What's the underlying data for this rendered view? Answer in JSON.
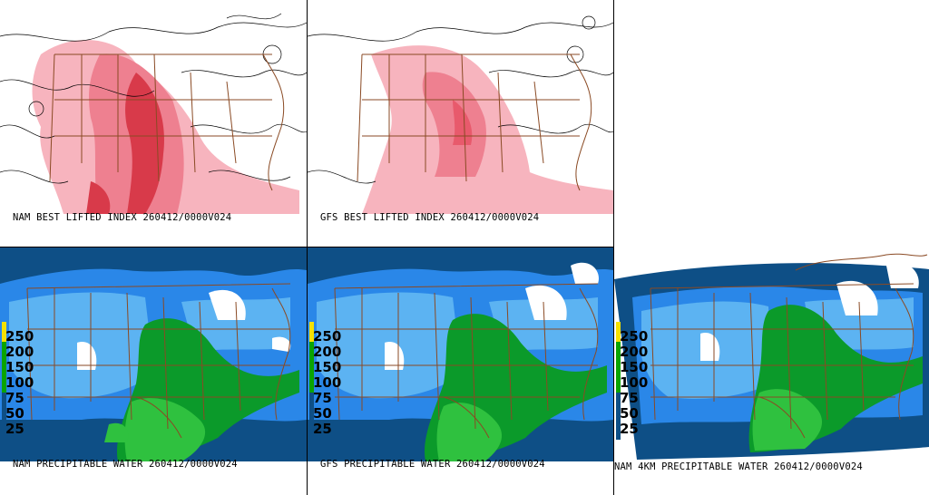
{
  "panels": [
    {
      "id": "nam-li",
      "caption": "NAM BEST LIFTED INDEX 260412/0000V024",
      "field": "lifted-index"
    },
    {
      "id": "gfs-li",
      "caption": "GFS BEST LIFTED INDEX 260412/0000V024",
      "field": "lifted-index"
    },
    {
      "id": "nam-pw",
      "caption": "NAM PRECIPITABLE WATER 260412/0000V024",
      "field": "precipitable-water"
    },
    {
      "id": "gfs-pw",
      "caption": "GFS PRECIPITABLE WATER 260412/0000V024",
      "field": "precipitable-water"
    },
    {
      "id": "nam4k-pw",
      "caption": "NAM 4KM PRECIPITABLE WATER 260412/0000V024",
      "field": "precipitable-water"
    }
  ],
  "pw_legend": {
    "labels": [
      "250",
      "200",
      "150",
      "100",
      "75",
      "50",
      "25"
    ],
    "colors": [
      "#f5e100",
      "#0aa400",
      "#38c038",
      "#0e4f86",
      "#2a87e8",
      "#6fbff6",
      "#0e4f86"
    ]
  },
  "colors": {
    "li_light": "#f7b4be",
    "li_mid": "#ee8090",
    "li_dark": "#d83a4a",
    "pw_deep": "#0e4f86",
    "pw_mid": "#2a87e8",
    "pw_light": "#5cb3f2",
    "pw_green_dark": "#0b9a2a",
    "pw_green_light": "#2fc13f",
    "boundaries": "#8a4a24"
  }
}
